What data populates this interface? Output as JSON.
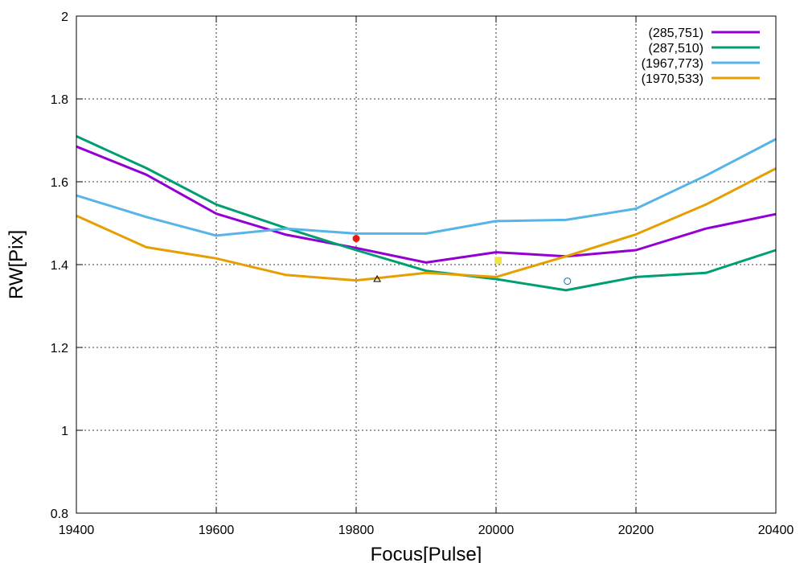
{
  "chart_data": {
    "type": "line",
    "xlabel": "Focus[Pulse]",
    "ylabel": "RW[Pix]",
    "xlim": [
      19400,
      20400
    ],
    "ylim": [
      0.8,
      2.0
    ],
    "x_ticks": [
      19400,
      19600,
      19800,
      20000,
      20200,
      20400
    ],
    "y_ticks": [
      0.8,
      1,
      1.2,
      1.4,
      1.6,
      1.8,
      2
    ],
    "x_tick_labels": [
      "19400",
      "19600",
      "19800",
      "20000",
      "20200",
      "20400"
    ],
    "y_tick_labels": [
      "0.8",
      "1",
      "1.2",
      "1.4",
      "1.6",
      "1.8",
      "2"
    ],
    "grid": true,
    "legend_position": "top-right",
    "x": [
      19400,
      19500,
      19600,
      19700,
      19800,
      19900,
      20000,
      20100,
      20200,
      20300,
      20400
    ],
    "series": [
      {
        "name": "(285,751)",
        "color": "#9400d3",
        "values": [
          1.685,
          1.617,
          1.523,
          1.472,
          1.44,
          1.405,
          1.43,
          1.42,
          1.435,
          1.487,
          1.522
        ]
      },
      {
        "name": "(287,510)",
        "color": "#009e73",
        "values": [
          1.71,
          1.633,
          1.545,
          1.488,
          1.435,
          1.385,
          1.365,
          1.338,
          1.37,
          1.38,
          1.435
        ]
      },
      {
        "name": "(1967,773)",
        "color": "#56b4e9",
        "values": [
          1.567,
          1.515,
          1.47,
          1.487,
          1.475,
          1.475,
          1.505,
          1.508,
          1.535,
          1.615,
          1.703
        ]
      },
      {
        "name": "(1970,533)",
        "color": "#e69f00",
        "values": [
          1.518,
          1.442,
          1.415,
          1.375,
          1.362,
          1.38,
          1.37,
          1.42,
          1.473,
          1.545,
          1.632
        ]
      }
    ],
    "markers": [
      {
        "shape": "filled-circle",
        "color": "#e51e10",
        "x": 19800,
        "y": 1.463
      },
      {
        "shape": "triangle",
        "color": "#000000",
        "x": 19830,
        "y": 1.365
      },
      {
        "shape": "filled-square",
        "color": "#f0e442",
        "x": 20003,
        "y": 1.41
      },
      {
        "shape": "open-circle",
        "color": "#0072b2",
        "x": 20102,
        "y": 1.36
      }
    ]
  }
}
